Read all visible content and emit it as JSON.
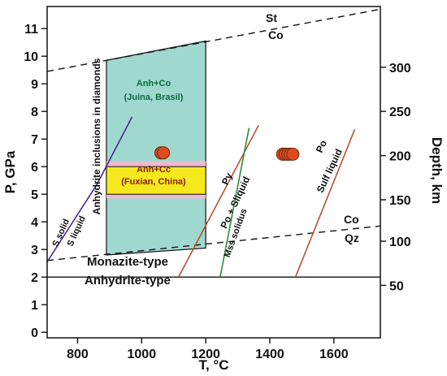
{
  "chart_data": {
    "type": "phase-diagram",
    "x_axis": {
      "label": "T, °C",
      "range": [
        705,
        1745
      ],
      "ticks": [
        800,
        1000,
        1200,
        1400,
        1600
      ]
    },
    "y_axis_left": {
      "label": "P, GPa",
      "range": [
        -0.2,
        11.8
      ],
      "ticks": [
        0,
        1,
        2,
        3,
        4,
        5,
        6,
        7,
        8,
        9,
        10,
        11
      ]
    },
    "y_axis_right": {
      "label": "Depth, km",
      "ticks": [
        50,
        100,
        150,
        200,
        250,
        300
      ],
      "ticks_gpa": [
        1.7,
        3.3,
        4.8,
        6.4,
        8.0,
        9.6
      ]
    },
    "regions": [
      {
        "name": "Anhydrite inclusions in diamonds",
        "color": "#9fd8cf",
        "polygon": [
          [
            890,
            2.8
          ],
          [
            1200,
            3.05
          ],
          [
            1200,
            10.55
          ],
          [
            890,
            9.85
          ]
        ]
      },
      {
        "name": "Anh+Cc (Fuxian, China)",
        "color": "#f5e81c",
        "band_color": "#f0b9cf",
        "band_p": [
          4.85,
          6.2
        ],
        "x_range": [
          890,
          1200
        ],
        "p_range": [
          5.0,
          6.0
        ]
      }
    ],
    "boundaries": [
      {
        "name": "St/Co",
        "style": "dashed",
        "points": [
          [
            705,
            9.45
          ],
          [
            1745,
            11.7
          ]
        ]
      },
      {
        "name": "Co/Qz",
        "style": "dashed",
        "points": [
          [
            705,
            2.6
          ],
          [
            1745,
            3.85
          ]
        ]
      },
      {
        "name": "Monazite/Anhydrite",
        "style": "solid",
        "points": [
          [
            705,
            2.0
          ],
          [
            1745,
            2.0
          ]
        ]
      },
      {
        "name": "S solid/S liquid",
        "style": "solid",
        "color": "#4a2a8f",
        "points": [
          [
            705,
            2.55
          ],
          [
            860,
            5.35
          ],
          [
            970,
            7.8
          ]
        ]
      },
      {
        "name": "Py/Po + S liquid",
        "style": "solid",
        "color": "#b5532a",
        "points": [
          [
            1115,
            2.0
          ],
          [
            1365,
            7.5
          ]
        ]
      },
      {
        "name": "Mss solidus",
        "style": "solid",
        "color": "#2e8b3a",
        "points": [
          [
            1245,
            2.0
          ],
          [
            1335,
            7.4
          ]
        ]
      },
      {
        "name": "Po/Sulf liquid",
        "style": "solid",
        "color": "#b5532a",
        "points": [
          [
            1480,
            2.0
          ],
          [
            1665,
            7.35
          ]
        ]
      }
    ],
    "points": [
      {
        "x": 1060,
        "y": 6.5,
        "color": "#e04a21"
      },
      {
        "x": 1068,
        "y": 6.5,
        "color": "#e04a21"
      },
      {
        "x": 1440,
        "y": 6.45,
        "color": "#e04a21"
      },
      {
        "x": 1448,
        "y": 6.45,
        "color": "#e04a21"
      },
      {
        "x": 1456,
        "y": 6.45,
        "color": "#e04a21"
      },
      {
        "x": 1464,
        "y": 6.45,
        "color": "#e04a21"
      },
      {
        "x": 1472,
        "y": 6.45,
        "color": "#e04a21"
      }
    ],
    "labels": {
      "st": "St",
      "co_upper": "Co",
      "anh_co_1": "Anh+Co",
      "anh_co_2": "(Juina, Brasil)",
      "anh_cc_1": "Anh+Cc",
      "anh_cc_2": "(Fuxian, China)",
      "inclusions": "Anhydrite inclusions in diamonds",
      "s_solid": "S solid",
      "s_liquid": "S liquid",
      "py": "Py",
      "po_sliquid": "Po + Sliquid",
      "mss_solidus": "Mss solidus",
      "po": "Po",
      "sulf_liquid": "Sulf liquid",
      "co_lower": "Co",
      "qz": "Qz",
      "monazite": "Monazite-type",
      "anhydrite": "Anhydrite-type"
    }
  }
}
